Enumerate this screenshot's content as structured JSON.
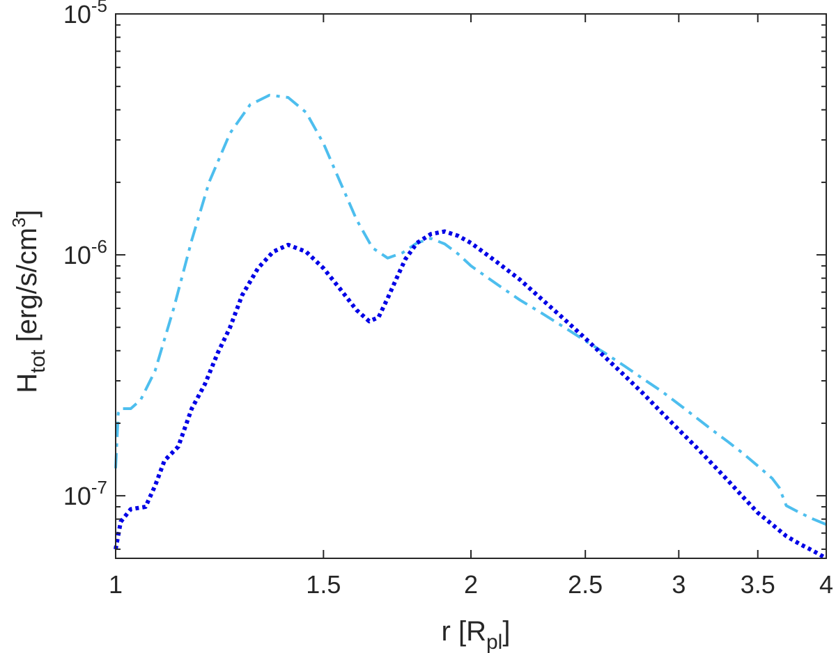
{
  "chart_data": {
    "type": "line",
    "xlabel": {
      "main": "r [R",
      "sub": "pl",
      "end": "]"
    },
    "ylabel": {
      "main": "H",
      "sub": "tot",
      "mid": " [erg/s/cm",
      "sup": "3",
      "end": "]"
    },
    "xscale": "log",
    "yscale": "log",
    "xlim": [
      1,
      4
    ],
    "ylim": [
      5.5e-08,
      1e-05
    ],
    "x_ticks": [
      {
        "value": 1,
        "label": "1"
      },
      {
        "value": 1.5,
        "label": "1.5"
      },
      {
        "value": 2,
        "label": "2"
      },
      {
        "value": 2.5,
        "label": "2.5"
      },
      {
        "value": 3,
        "label": "3"
      },
      {
        "value": 3.5,
        "label": "3.5"
      },
      {
        "value": 4,
        "label": "4"
      }
    ],
    "y_ticks": [
      {
        "value": 1e-07,
        "base": "10",
        "exp": "-7"
      },
      {
        "value": 1e-06,
        "base": "10",
        "exp": "-6"
      },
      {
        "value": 1e-05,
        "base": "10",
        "exp": "-5"
      }
    ],
    "grid": false,
    "series": [
      {
        "style": "dash-dot",
        "color": "#4DBEEE",
        "x": [
          1.0,
          1.005,
          1.01,
          1.03,
          1.05,
          1.08,
          1.12,
          1.16,
          1.2,
          1.25,
          1.3,
          1.35,
          1.4,
          1.45,
          1.5,
          1.55,
          1.6,
          1.65,
          1.7,
          1.75,
          1.8,
          1.85,
          1.9,
          1.95,
          2.0,
          2.1,
          2.2,
          2.3,
          2.4,
          2.5,
          2.6,
          2.7,
          2.8,
          2.9,
          3.0,
          3.1,
          3.2,
          3.3,
          3.4,
          3.5,
          3.6,
          3.65,
          3.7,
          3.8,
          3.9,
          4.0
        ],
        "y": [
          1.3e-07,
          2.2e-07,
          2.3e-07,
          2.3e-07,
          2.5e-07,
          3.3e-07,
          6e-07,
          1.15e-06,
          2e-06,
          3.2e-06,
          4.2e-06,
          4.6e-06,
          4.5e-06,
          3.9e-06,
          2.9e-06,
          2e-06,
          1.4e-06,
          1.07e-06,
          9.7e-07,
          1.02e-06,
          1.12e-06,
          1.17e-06,
          1.11e-06,
          1.01e-06,
          9e-07,
          7.6e-07,
          6.5e-07,
          5.7e-07,
          5e-07,
          4.4e-07,
          3.9e-07,
          3.45e-07,
          3.05e-07,
          2.72e-07,
          2.4e-07,
          2.12e-07,
          1.88e-07,
          1.68e-07,
          1.5e-07,
          1.33e-07,
          1.18e-07,
          1.08e-07,
          9.1e-08,
          8.5e-08,
          8e-08,
          7.6e-08
        ]
      },
      {
        "style": "dotted",
        "color": "#0000E6",
        "x": [
          1.0,
          1.01,
          1.03,
          1.06,
          1.08,
          1.1,
          1.13,
          1.16,
          1.19,
          1.22,
          1.25,
          1.28,
          1.32,
          1.36,
          1.4,
          1.45,
          1.5,
          1.55,
          1.6,
          1.64,
          1.67,
          1.7,
          1.73,
          1.76,
          1.8,
          1.85,
          1.9,
          1.95,
          2.0,
          2.1,
          2.2,
          2.3,
          2.4,
          2.5,
          2.6,
          2.7,
          2.8,
          2.9,
          3.0,
          3.1,
          3.2,
          3.3,
          3.4,
          3.5,
          3.6,
          3.7,
          3.8,
          3.9,
          4.0
        ],
        "y": [
          6e-08,
          7.8e-08,
          8.8e-08,
          9e-08,
          1.1e-07,
          1.4e-07,
          1.6e-07,
          2.3e-07,
          2.9e-07,
          3.9e-07,
          5e-07,
          6.8e-07,
          8.8e-07,
          1.03e-06,
          1.1e-06,
          1.03e-06,
          8.8e-07,
          7.2e-07,
          5.9e-07,
          5.3e-07,
          5.5e-07,
          6.6e-07,
          8e-07,
          9.6e-07,
          1.12e-06,
          1.22e-06,
          1.25e-06,
          1.2e-06,
          1.12e-06,
          9.4e-07,
          7.9e-07,
          6.5e-07,
          5.4e-07,
          4.5e-07,
          3.75e-07,
          3.15e-07,
          2.65e-07,
          2.22e-07,
          1.88e-07,
          1.6e-07,
          1.36e-07,
          1.16e-07,
          9.9e-08,
          8.5e-08,
          7.6e-08,
          6.8e-08,
          6.3e-08,
          5.9e-08,
          5.5e-08
        ]
      }
    ]
  }
}
